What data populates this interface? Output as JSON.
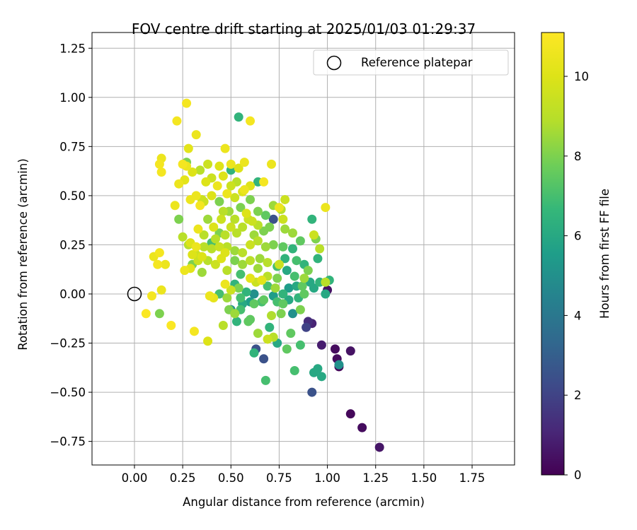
{
  "chart_data": {
    "type": "scatter",
    "title": "FOV centre drift starting at 2025/01/03 01:29:37",
    "xlabel": "Angular distance from reference (arcmin)",
    "ylabel": "Rotation from reference (arcmin)",
    "xlim": [
      -0.22,
      1.97
    ],
    "ylim": [
      -0.87,
      1.33
    ],
    "xticks": [
      0.0,
      0.25,
      0.5,
      0.75,
      1.0,
      1.25,
      1.5,
      1.75
    ],
    "xtick_labels": [
      "0.00",
      "0.25",
      "0.50",
      "0.75",
      "1.00",
      "1.25",
      "1.50",
      "1.75"
    ],
    "yticks": [
      -0.75,
      -0.5,
      -0.25,
      0.0,
      0.25,
      0.5,
      0.75,
      1.0,
      1.25
    ],
    "ytick_labels": [
      "−0.75",
      "−0.50",
      "−0.25",
      "0.00",
      "0.25",
      "0.50",
      "0.75",
      "1.00",
      "1.25"
    ],
    "grid": true,
    "legend": {
      "placement": "upper-right",
      "entries": [
        "Reference platepar"
      ]
    },
    "reference_point": {
      "x": 0.0,
      "y": 0.0,
      "marker": "open-circle"
    },
    "colorbar": {
      "label": "Hours from first FF file",
      "colormap": "viridis",
      "range": [
        0,
        11.1
      ],
      "ticks": [
        0,
        2,
        4,
        6,
        8,
        10
      ],
      "tick_labels": [
        "0",
        "2",
        "4",
        "6",
        "8",
        "10"
      ]
    },
    "points": [
      [
        1.27,
        -0.78,
        0.6
      ],
      [
        1.18,
        -0.68,
        0.3
      ],
      [
        1.12,
        -0.61,
        0.2
      ],
      [
        1.12,
        -0.29,
        0.5
      ],
      [
        1.06,
        -0.37,
        0.2
      ],
      [
        1.05,
        -0.33,
        0.3
      ],
      [
        1.04,
        -0.28,
        0.3
      ],
      [
        1.06,
        -0.36,
        5.0
      ],
      [
        0.92,
        -0.5,
        2.5
      ],
      [
        0.97,
        -0.26,
        0.8
      ],
      [
        1.0,
        0.02,
        0.5
      ],
      [
        0.92,
        -0.15,
        1.0
      ],
      [
        0.9,
        -0.14,
        1.3
      ],
      [
        0.89,
        -0.17,
        2.0
      ],
      [
        0.93,
        -0.4,
        6.0
      ],
      [
        0.95,
        -0.38,
        6.0
      ],
      [
        0.97,
        -0.42,
        6.0
      ],
      [
        0.83,
        -0.39,
        7.0
      ],
      [
        0.81,
        -0.2,
        7.5
      ],
      [
        0.86,
        -0.26,
        7.0
      ],
      [
        0.79,
        -0.28,
        7.5
      ],
      [
        0.74,
        -0.25,
        6.0
      ],
      [
        0.72,
        -0.22,
        9.0
      ],
      [
        0.69,
        -0.23,
        9.5
      ],
      [
        0.68,
        -0.44,
        7.0
      ],
      [
        0.67,
        -0.33,
        2.5
      ],
      [
        0.63,
        -0.28,
        2.5
      ],
      [
        0.62,
        -0.3,
        6.5
      ],
      [
        0.64,
        -0.2,
        8.5
      ],
      [
        0.7,
        -0.17,
        6.5
      ],
      [
        0.59,
        -0.14,
        7.5
      ],
      [
        0.55,
        -0.08,
        7.0
      ],
      [
        0.5,
        -0.08,
        5.0
      ],
      [
        0.52,
        -0.1,
        8.5
      ],
      [
        0.46,
        -0.16,
        9.0
      ],
      [
        0.71,
        -0.11,
        8.8
      ],
      [
        0.76,
        -0.1,
        8.0
      ],
      [
        0.82,
        -0.1,
        5.0
      ],
      [
        0.86,
        -0.08,
        8.0
      ],
      [
        0.77,
        -0.05,
        7.5
      ],
      [
        0.66,
        -0.04,
        7.0
      ],
      [
        0.6,
        -0.04,
        5.5
      ],
      [
        0.56,
        -0.05,
        6.0
      ],
      [
        0.62,
        -0.05,
        7.5
      ],
      [
        0.67,
        -0.03,
        7.5
      ],
      [
        0.74,
        -0.04,
        7.0
      ],
      [
        0.8,
        -0.03,
        6.0
      ],
      [
        0.72,
        -0.01,
        5.5
      ],
      [
        0.62,
        0.0,
        5.0
      ],
      [
        0.58,
        0.01,
        6.5
      ],
      [
        0.54,
        0.03,
        8.0
      ],
      [
        0.52,
        0.05,
        6.5
      ],
      [
        0.5,
        0.02,
        9.5
      ],
      [
        0.47,
        0.05,
        10.5
      ],
      [
        0.44,
        0.0,
        7.0
      ],
      [
        0.39,
        -0.01,
        10.5
      ],
      [
        0.41,
        -0.02,
        10.3
      ],
      [
        0.48,
        -0.02,
        8.5
      ],
      [
        0.55,
        -0.02,
        7.0
      ],
      [
        0.63,
        0.06,
        9.5
      ],
      [
        0.69,
        0.04,
        7.0
      ],
      [
        0.74,
        0.08,
        8.0
      ],
      [
        0.8,
        0.03,
        5.5
      ],
      [
        0.84,
        0.04,
        6.0
      ],
      [
        0.87,
        0.04,
        7.5
      ],
      [
        0.91,
        0.06,
        6.0
      ],
      [
        0.93,
        0.03,
        6.0
      ],
      [
        0.96,
        0.06,
        6.5
      ],
      [
        0.99,
        0.0,
        6.0
      ],
      [
        0.99,
        0.06,
        9.0
      ],
      [
        1.01,
        0.07,
        6.5
      ],
      [
        0.9,
        0.12,
        8.0
      ],
      [
        0.88,
        0.15,
        6.5
      ],
      [
        0.84,
        0.17,
        7.0
      ],
      [
        0.78,
        0.18,
        6.5
      ],
      [
        0.74,
        0.14,
        7.0
      ],
      [
        0.69,
        0.09,
        9.0
      ],
      [
        0.64,
        0.13,
        8.5
      ],
      [
        0.6,
        0.17,
        9.0
      ],
      [
        0.56,
        0.15,
        8.5
      ],
      [
        0.55,
        0.1,
        7.0
      ],
      [
        0.52,
        0.17,
        8.0
      ],
      [
        0.48,
        0.12,
        9.0
      ],
      [
        0.45,
        0.18,
        10.0
      ],
      [
        0.42,
        0.15,
        9.5
      ],
      [
        0.38,
        0.17,
        9.0
      ],
      [
        0.35,
        0.11,
        8.5
      ],
      [
        0.33,
        0.17,
        9.5
      ],
      [
        0.29,
        0.13,
        10.2
      ],
      [
        0.3,
        0.2,
        10.0
      ],
      [
        0.32,
        0.24,
        10.5
      ],
      [
        0.28,
        0.25,
        9.0
      ],
      [
        0.36,
        0.24,
        9.0
      ],
      [
        0.4,
        0.23,
        9.0
      ],
      [
        0.44,
        0.24,
        9.5
      ],
      [
        0.48,
        0.24,
        9.0
      ],
      [
        0.52,
        0.22,
        8.5
      ],
      [
        0.56,
        0.21,
        9.0
      ],
      [
        0.6,
        0.25,
        9.5
      ],
      [
        0.64,
        0.27,
        9.0
      ],
      [
        0.68,
        0.24,
        8.5
      ],
      [
        0.72,
        0.25,
        8.0
      ],
      [
        0.77,
        0.24,
        7.5
      ],
      [
        0.82,
        0.23,
        6.5
      ],
      [
        0.86,
        0.27,
        7.5
      ],
      [
        0.93,
        0.3,
        9.5
      ],
      [
        0.94,
        0.28,
        8.0
      ],
      [
        0.96,
        0.23,
        9.0
      ],
      [
        0.92,
        0.38,
        6.5
      ],
      [
        0.95,
        0.18,
        6.5
      ],
      [
        0.99,
        0.44,
        10.5
      ],
      [
        0.82,
        0.31,
        8.5
      ],
      [
        0.78,
        0.33,
        8.5
      ],
      [
        0.77,
        0.38,
        9.5
      ],
      [
        0.72,
        0.38,
        2.5
      ],
      [
        0.7,
        0.34,
        8.0
      ],
      [
        0.67,
        0.32,
        8.0
      ],
      [
        0.64,
        0.35,
        9.0
      ],
      [
        0.62,
        0.3,
        8.5
      ],
      [
        0.59,
        0.38,
        9.5
      ],
      [
        0.56,
        0.34,
        9.0
      ],
      [
        0.53,
        0.31,
        9.0
      ],
      [
        0.5,
        0.34,
        9.5
      ],
      [
        0.47,
        0.3,
        9.0
      ],
      [
        0.44,
        0.31,
        8.0
      ],
      [
        0.41,
        0.34,
        10.0
      ],
      [
        0.38,
        0.38,
        8.5
      ],
      [
        0.36,
        0.3,
        9.0
      ],
      [
        0.4,
        0.26,
        7.0
      ],
      [
        0.33,
        0.33,
        10.5
      ],
      [
        0.45,
        0.38,
        9.5
      ],
      [
        0.49,
        0.42,
        8.5
      ],
      [
        0.52,
        0.38,
        9.0
      ],
      [
        0.55,
        0.44,
        8.0
      ],
      [
        0.58,
        0.41,
        10.0
      ],
      [
        0.61,
        0.37,
        9.5
      ],
      [
        0.64,
        0.42,
        8.0
      ],
      [
        0.68,
        0.4,
        7.5
      ],
      [
        0.72,
        0.45,
        8.5
      ],
      [
        0.76,
        0.43,
        9.0
      ],
      [
        0.78,
        0.48,
        9.5
      ],
      [
        0.75,
        0.44,
        10.5
      ],
      [
        0.6,
        0.48,
        8.0
      ],
      [
        0.56,
        0.52,
        10.0
      ],
      [
        0.52,
        0.49,
        9.5
      ],
      [
        0.48,
        0.51,
        10.5
      ],
      [
        0.44,
        0.47,
        8.0
      ],
      [
        0.4,
        0.5,
        10.0
      ],
      [
        0.36,
        0.47,
        9.5
      ],
      [
        0.32,
        0.5,
        10.5
      ],
      [
        0.29,
        0.48,
        10.5
      ],
      [
        0.34,
        0.45,
        10.8
      ],
      [
        0.37,
        0.57,
        10.0
      ],
      [
        0.4,
        0.59,
        9.5
      ],
      [
        0.43,
        0.55,
        10.5
      ],
      [
        0.46,
        0.6,
        10.0
      ],
      [
        0.5,
        0.55,
        9.5
      ],
      [
        0.53,
        0.57,
        9.0
      ],
      [
        0.57,
        0.53,
        10.5
      ],
      [
        0.6,
        0.55,
        10.0
      ],
      [
        0.64,
        0.57,
        6.5
      ],
      [
        0.67,
        0.57,
        10.8
      ],
      [
        0.5,
        0.63,
        6.5
      ],
      [
        0.54,
        0.64,
        10.0
      ],
      [
        0.57,
        0.67,
        10.5
      ],
      [
        0.5,
        0.66,
        10.5
      ],
      [
        0.44,
        0.65,
        10.0
      ],
      [
        0.38,
        0.66,
        9.5
      ],
      [
        0.34,
        0.63,
        9.0
      ],
      [
        0.3,
        0.62,
        10.0
      ],
      [
        0.26,
        0.58,
        10.2
      ],
      [
        0.23,
        0.56,
        10.5
      ],
      [
        0.27,
        0.65,
        10.5
      ],
      [
        0.27,
        0.67,
        8.0
      ],
      [
        0.25,
        0.66,
        10.8
      ],
      [
        0.14,
        0.69,
        10.5
      ],
      [
        0.13,
        0.66,
        10.8
      ],
      [
        0.14,
        0.62,
        10.8
      ],
      [
        0.23,
        0.38,
        8.0
      ],
      [
        0.21,
        0.45,
        10.5
      ],
      [
        0.25,
        0.29,
        9.0
      ],
      [
        0.29,
        0.26,
        10.0
      ],
      [
        0.32,
        0.2,
        9.5
      ],
      [
        0.35,
        0.19,
        10.0
      ],
      [
        0.3,
        0.15,
        8.0
      ],
      [
        0.26,
        0.12,
        10.5
      ],
      [
        0.16,
        0.15,
        10.5
      ],
      [
        0.13,
        0.21,
        10.8
      ],
      [
        0.1,
        0.19,
        10.5
      ],
      [
        0.14,
        0.02,
        10.5
      ],
      [
        0.12,
        0.15,
        10.8
      ],
      [
        0.09,
        -0.01,
        10.8
      ],
      [
        0.06,
        -0.1,
        11.0
      ],
      [
        0.13,
        -0.1,
        8.0
      ],
      [
        0.19,
        -0.16,
        11.0
      ],
      [
        0.31,
        -0.19,
        10.8
      ],
      [
        0.38,
        -0.24,
        10.0
      ],
      [
        0.49,
        -0.08,
        8.0
      ],
      [
        0.53,
        -0.14,
        6.5
      ],
      [
        0.6,
        -0.13,
        7.5
      ],
      [
        0.27,
        0.97,
        10.8
      ],
      [
        0.22,
        0.88,
        10.8
      ],
      [
        0.32,
        0.81,
        10.5
      ],
      [
        0.28,
        0.74,
        10.2
      ],
      [
        0.47,
        0.74,
        10.5
      ],
      [
        0.54,
        0.9,
        6.5
      ],
      [
        0.6,
        0.88,
        10.8
      ],
      [
        0.71,
        0.66,
        10.5
      ],
      [
        0.35,
        0.48,
        9.5
      ],
      [
        0.46,
        0.42,
        9.0
      ],
      [
        0.42,
        0.28,
        9.0
      ],
      [
        0.47,
        0.21,
        10.0
      ],
      [
        0.6,
        0.08,
        10.2
      ],
      [
        0.66,
        0.07,
        10.2
      ],
      [
        0.73,
        0.03,
        8.5
      ],
      [
        0.77,
        0.0,
        6.5
      ],
      [
        0.85,
        -0.02,
        6.5
      ],
      [
        0.88,
        0.0,
        7.5
      ],
      [
        0.88,
        0.08,
        8.5
      ],
      [
        0.83,
        0.09,
        7.0
      ],
      [
        0.79,
        0.12,
        6.0
      ],
      [
        0.75,
        0.15,
        9.5
      ],
      [
        0.65,
        0.18,
        8.5
      ],
      [
        0.69,
        0.16,
        9.0
      ]
    ]
  }
}
